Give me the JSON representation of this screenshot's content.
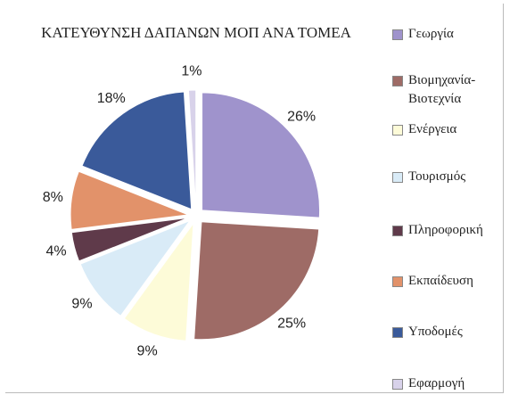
{
  "chart_data": {
    "type": "pie",
    "title": "ΚΑΤΕΥΘΥΝΣΗ ΔΑΠΑΝΩΝ ΜΟΠ ΑΝΑ ΤΟΜΕΑ",
    "categories": [
      "Γεωργία",
      "Βιομηχανία-Βιοτεχνία",
      "Ενέργεια",
      "Τουρισμός",
      "Πληροφορική",
      "Εκπαίδευση",
      "Υποδομές",
      "Εφαρμογή"
    ],
    "values": [
      26,
      25,
      9,
      9,
      4,
      8,
      18,
      1
    ],
    "value_labels": [
      "26%",
      "25%",
      "9%",
      "9%",
      "4%",
      "8%",
      "18%",
      "1%"
    ],
    "colors": [
      "#9f93cc",
      "#9e6b66",
      "#fdfbd8",
      "#d9ebf7",
      "#5f3a4a",
      "#e2926a",
      "#3a5a9a",
      "#d8d2ea"
    ],
    "legend": "right"
  }
}
